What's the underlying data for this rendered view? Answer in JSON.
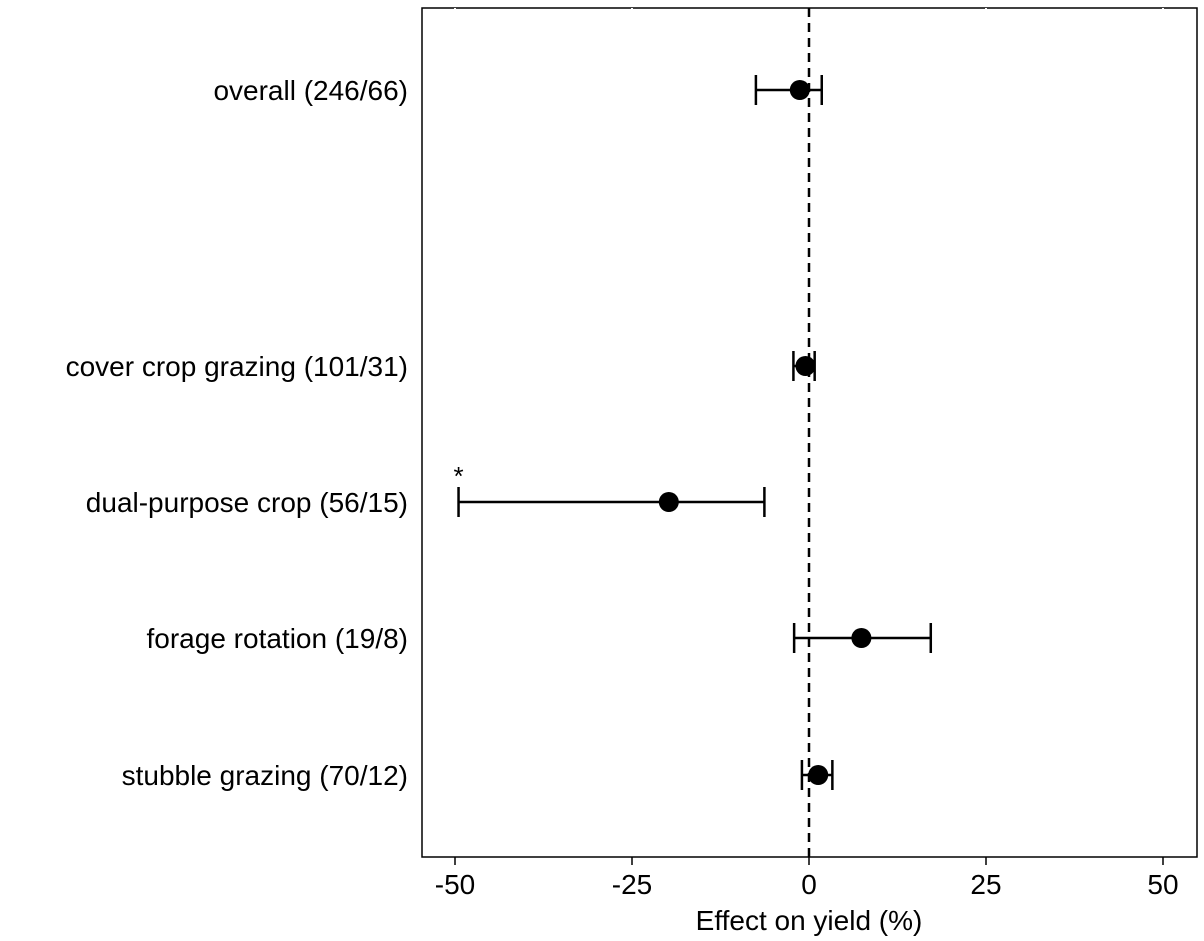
{
  "chart_data": {
    "type": "forest",
    "title": "",
    "xlabel": "Effect on yield (%)",
    "ylabel": "",
    "xlim": [
      -55,
      55
    ],
    "xticks": [
      -50,
      -25,
      0,
      25,
      50
    ],
    "xtick_labels": [
      "-50",
      "-25",
      "0",
      "25",
      "50"
    ],
    "reference_line": 0,
    "grid": false,
    "legend": "none",
    "colors": {
      "point": "#000000",
      "line": "#000000"
    },
    "rows": [
      {
        "label": "overall (246/66)",
        "estimate": -1.3,
        "lower": -7.5,
        "upper": 1.8,
        "annotation": ""
      },
      {
        "label": "cover crop grazing (101/31)",
        "estimate": -0.5,
        "lower": -2.2,
        "upper": 0.8,
        "annotation": ""
      },
      {
        "label": "dual-purpose crop (56/15)",
        "estimate": -19.8,
        "lower": -49.5,
        "upper": -6.3,
        "annotation": "*"
      },
      {
        "label": "forage rotation (19/8)",
        "estimate": 7.4,
        "lower": -2.1,
        "upper": 17.2,
        "annotation": ""
      },
      {
        "label": "stubble grazing (70/12)",
        "estimate": 1.3,
        "lower": -1.0,
        "upper": 3.3,
        "annotation": ""
      }
    ]
  }
}
